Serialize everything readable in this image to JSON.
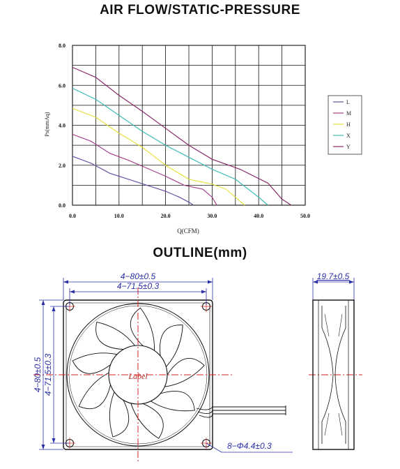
{
  "titles": {
    "airflow": "AIR FLOW/STATIC-PRESSURE",
    "outline": "OUTLINE(mm)"
  },
  "chart_data": {
    "type": "line",
    "xlabel": "Q(CFM)",
    "ylabel": "Ps(mmAq)",
    "xlim": [
      0,
      50
    ],
    "ylim": [
      0,
      8
    ],
    "x_ticks": [
      "0.0",
      "10.0",
      "20.0",
      "30.0",
      "40.0",
      "50.0"
    ],
    "y_ticks": [
      "0.0",
      "2.0",
      "4.0",
      "6.0",
      "8.0"
    ],
    "grid": true,
    "legend_position": "right",
    "series": [
      {
        "name": "L",
        "color": "#6a4fa0",
        "points": [
          [
            0,
            2.45
          ],
          [
            4,
            2.1
          ],
          [
            8,
            1.6
          ],
          [
            12,
            1.3
          ],
          [
            16,
            1.0
          ],
          [
            20,
            0.7
          ],
          [
            23,
            0.4
          ],
          [
            25,
            0.15
          ],
          [
            26,
            0
          ]
        ]
      },
      {
        "name": "M",
        "color": "#a6408a",
        "points": [
          [
            0,
            3.55
          ],
          [
            4,
            3.2
          ],
          [
            8,
            2.6
          ],
          [
            12,
            2.25
          ],
          [
            16,
            1.85
          ],
          [
            20,
            1.45
          ],
          [
            24,
            1.0
          ],
          [
            28,
            0.8
          ],
          [
            30,
            0.4
          ],
          [
            31,
            0
          ]
        ]
      },
      {
        "name": "H",
        "color": "#e6e040",
        "points": [
          [
            0,
            4.85
          ],
          [
            5,
            4.4
          ],
          [
            10,
            3.6
          ],
          [
            15,
            2.9
          ],
          [
            20,
            2.0
          ],
          [
            25,
            1.3
          ],
          [
            30,
            1.05
          ],
          [
            33,
            0.8
          ],
          [
            36,
            0.2
          ],
          [
            37,
            0
          ]
        ]
      },
      {
        "name": "X",
        "color": "#3cbcb4",
        "points": [
          [
            0,
            5.85
          ],
          [
            5,
            5.3
          ],
          [
            10,
            4.5
          ],
          [
            15,
            3.7
          ],
          [
            20,
            3.0
          ],
          [
            25,
            2.4
          ],
          [
            30,
            1.8
          ],
          [
            35,
            1.3
          ],
          [
            40,
            0.4
          ],
          [
            42,
            0
          ]
        ]
      },
      {
        "name": "Y",
        "color": "#8a2a6a",
        "points": [
          [
            0,
            6.9
          ],
          [
            5,
            6.4
          ],
          [
            10,
            5.5
          ],
          [
            15,
            4.7
          ],
          [
            20,
            3.85
          ],
          [
            25,
            3.0
          ],
          [
            30,
            2.3
          ],
          [
            36,
            1.8
          ],
          [
            42,
            1.1
          ],
          [
            45,
            0.3
          ],
          [
            47,
            0
          ]
        ]
      }
    ]
  },
  "outline": {
    "dim_top_outer": "4−80±0.5",
    "dim_top_inner": "4−71.5±0.3",
    "dim_left_outer": "4−80±0.5",
    "dim_left_inner": "4−71.5±0.3",
    "dim_hole": "8−Φ4.4±0.3",
    "dim_thickness": "19.7±0.5",
    "hub_label": "Label"
  }
}
